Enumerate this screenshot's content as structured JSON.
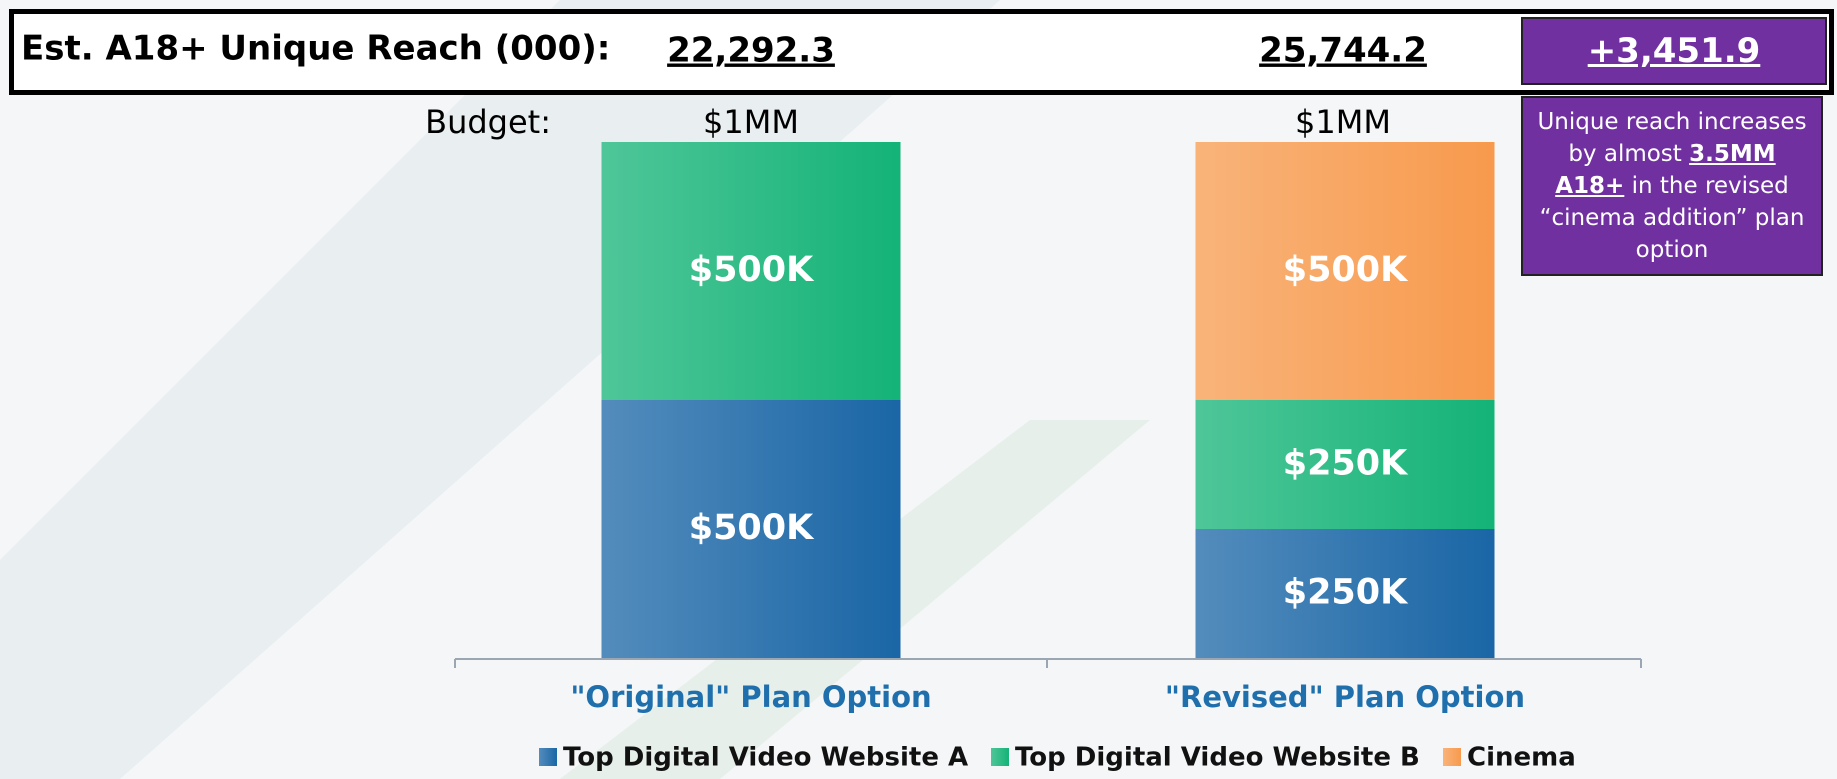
{
  "chart_data": {
    "type": "bar",
    "stacked": true,
    "reach_label": "Est. A18+ Unique Reach (000):",
    "reach_values": [
      "22,292.3",
      "25,744.2"
    ],
    "reach_difference": "+3,451.9",
    "budget_label": "Budget:",
    "budget_values": [
      "$1MM",
      "$1MM"
    ],
    "callout": [
      "Unique reach increases by almost ",
      "3.5MM A18+",
      " in the revised “cinema addition” plan option"
    ],
    "categories": [
      "\"Original\" Plan Option",
      "\"Revised\" Plan Option"
    ],
    "ylim": [
      0,
      1000
    ],
    "series": [
      {
        "name": "Top Digital Video Website A",
        "color": "#1a66a6",
        "values": [
          500,
          250
        ],
        "value_labels": [
          "$500K",
          "$250K"
        ]
      },
      {
        "name": "Top Digital Video Website B",
        "color": "#14b377",
        "values": [
          500,
          250
        ],
        "value_labels": [
          "$500K",
          "$250K"
        ]
      },
      {
        "name": "Cinema",
        "color": "#f79a4d",
        "values": [
          0,
          500
        ],
        "value_labels": [
          null,
          "$500K"
        ]
      }
    ]
  }
}
